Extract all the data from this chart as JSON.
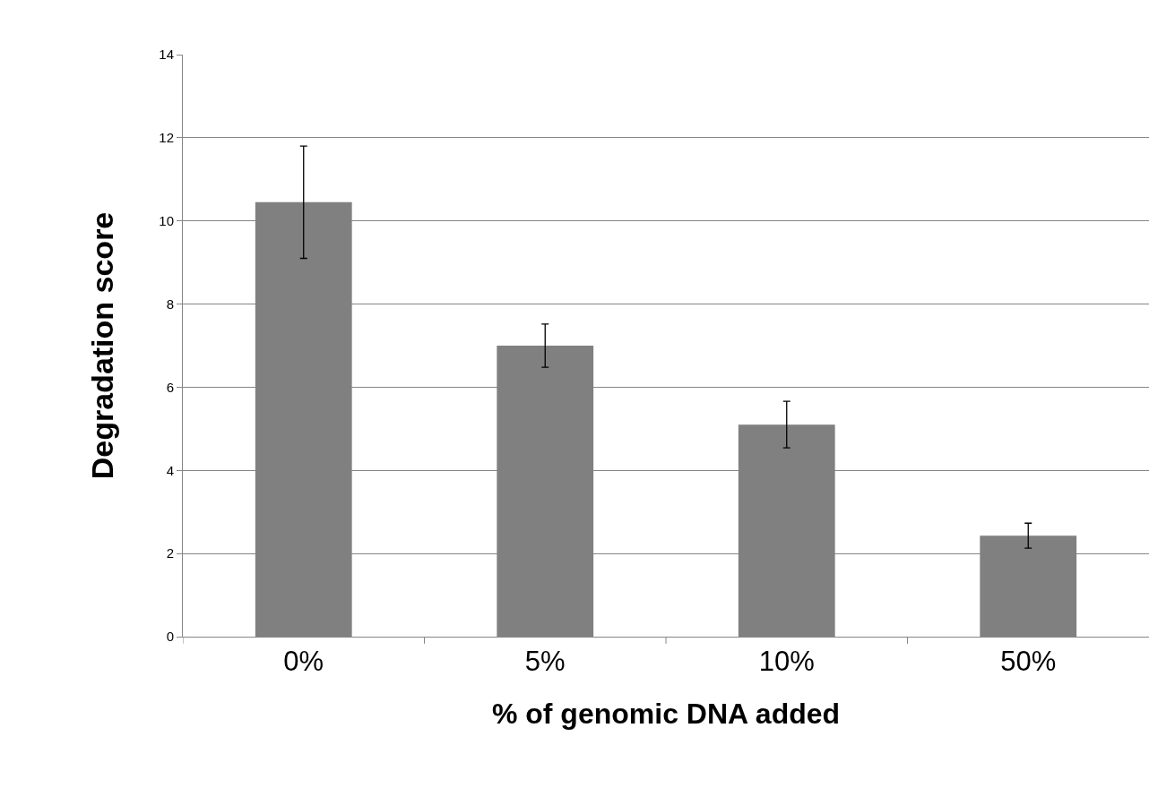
{
  "chart_data": {
    "type": "bar",
    "xlabel": "% of genomic DNA added",
    "ylabel": "Degradation score",
    "categories": [
      "0%",
      "5%",
      "10%",
      "50%"
    ],
    "values": [
      10.45,
      7.0,
      5.1,
      2.43
    ],
    "errors": [
      1.35,
      0.52,
      0.56,
      0.3
    ],
    "color": "#808080",
    "ylim": [
      0,
      14
    ],
    "yticks": [
      0,
      2,
      4,
      6,
      8,
      10,
      12,
      14
    ],
    "grid": "y"
  }
}
